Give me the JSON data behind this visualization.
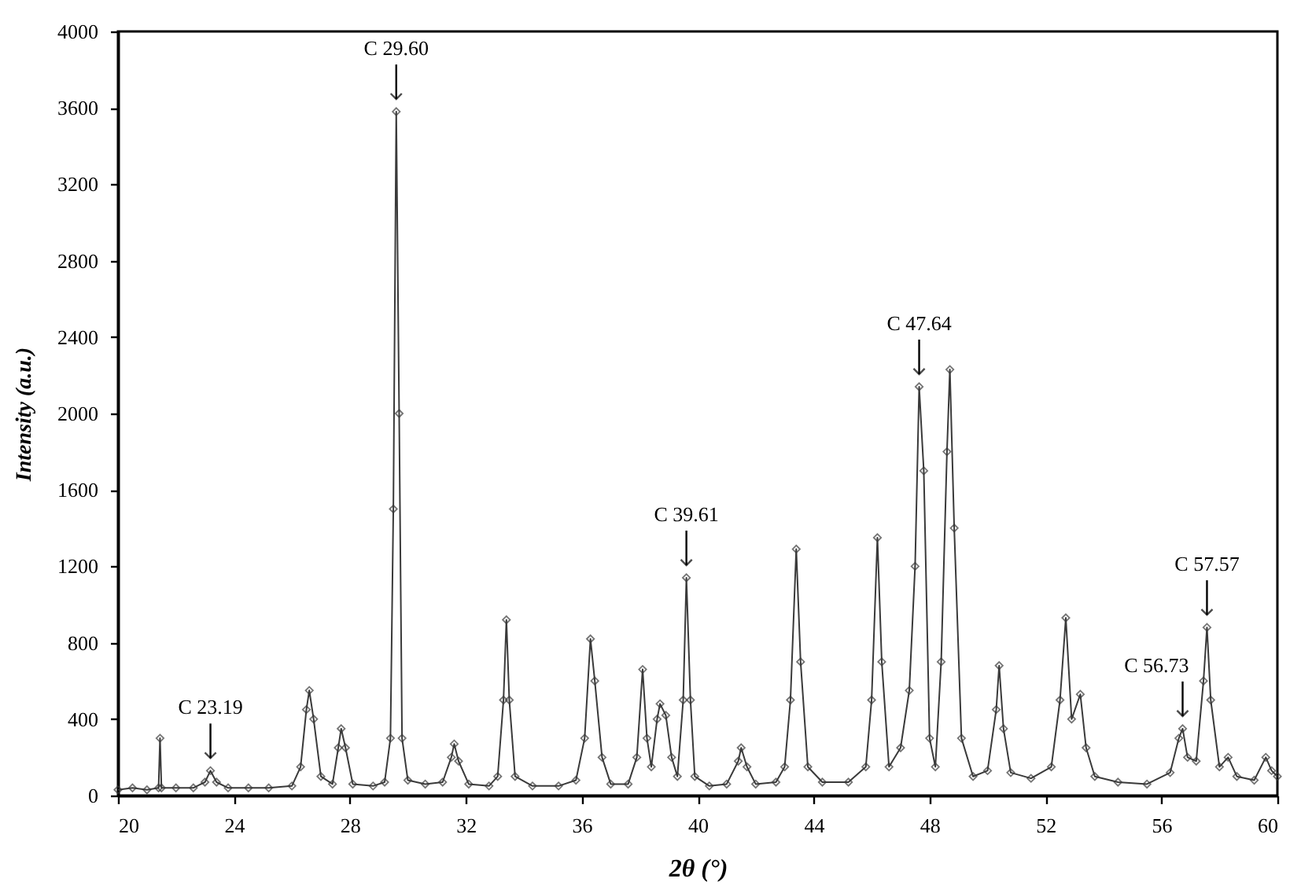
{
  "chart_data": {
    "type": "line",
    "xlabel": "2θ (°)",
    "ylabel": "Intensity (a.u.)",
    "xlim": [
      20,
      60
    ],
    "xticks": [
      20,
      24,
      28,
      32,
      36,
      40,
      44,
      48,
      52,
      56,
      60
    ],
    "ylim": [
      0,
      4000
    ],
    "yticks": [
      0,
      400,
      800,
      1200,
      1600,
      2000,
      2400,
      2800,
      3200,
      3600,
      4000
    ],
    "grid": false,
    "marker": "diamond",
    "line_style": "solid",
    "series": [
      {
        "color": "#3a3a3a",
        "x": [
          20.0,
          20.5,
          21.0,
          21.4,
          21.45,
          21.5,
          22.0,
          22.6,
          23.0,
          23.19,
          23.4,
          23.8,
          24.5,
          25.2,
          26.0,
          26.3,
          26.5,
          26.6,
          26.75,
          27.0,
          27.4,
          27.6,
          27.7,
          27.85,
          28.1,
          28.8,
          29.2,
          29.4,
          29.5,
          29.6,
          29.7,
          29.8,
          30.0,
          30.6,
          31.2,
          31.5,
          31.6,
          31.75,
          32.1,
          32.8,
          33.1,
          33.3,
          33.4,
          33.5,
          33.7,
          34.3,
          35.2,
          35.8,
          36.1,
          36.3,
          36.45,
          36.7,
          37.0,
          37.6,
          37.9,
          38.1,
          38.25,
          38.4,
          38.6,
          38.7,
          38.9,
          39.1,
          39.3,
          39.5,
          39.61,
          39.75,
          39.9,
          40.4,
          41.0,
          41.4,
          41.5,
          41.7,
          42.0,
          42.7,
          43.0,
          43.2,
          43.4,
          43.55,
          43.8,
          44.3,
          45.2,
          45.8,
          46.0,
          46.2,
          46.35,
          46.6,
          47.0,
          47.3,
          47.5,
          47.64,
          47.8,
          48.0,
          48.2,
          48.4,
          48.6,
          48.7,
          48.85,
          49.1,
          49.5,
          50.0,
          50.3,
          50.4,
          50.55,
          50.8,
          51.5,
          52.2,
          52.5,
          52.7,
          52.9,
          53.2,
          53.4,
          53.7,
          54.5,
          55.5,
          56.3,
          56.6,
          56.73,
          56.9,
          57.2,
          57.45,
          57.57,
          57.7,
          58.0,
          58.3,
          58.6,
          59.2,
          59.6,
          59.8,
          60.0
        ],
        "values": [
          30,
          40,
          30,
          40,
          300,
          40,
          40,
          40,
          70,
          130,
          70,
          40,
          40,
          40,
          50,
          150,
          450,
          550,
          400,
          100,
          60,
          250,
          350,
          250,
          60,
          50,
          70,
          300,
          1500,
          3580,
          2000,
          300,
          80,
          60,
          70,
          200,
          270,
          180,
          60,
          50,
          100,
          500,
          920,
          500,
          100,
          50,
          50,
          80,
          300,
          820,
          600,
          200,
          60,
          60,
          200,
          660,
          300,
          150,
          400,
          480,
          420,
          200,
          100,
          500,
          1140,
          500,
          100,
          50,
          60,
          180,
          250,
          150,
          60,
          70,
          150,
          500,
          1290,
          700,
          150,
          70,
          70,
          150,
          500,
          1350,
          700,
          150,
          250,
          550,
          1200,
          2140,
          1700,
          300,
          150,
          700,
          1800,
          2230,
          1400,
          300,
          100,
          130,
          450,
          680,
          350,
          120,
          90,
          150,
          500,
          930,
          400,
          530,
          250,
          100,
          70,
          60,
          120,
          300,
          350,
          200,
          180,
          600,
          880,
          500,
          150,
          200,
          100,
          80,
          200,
          130,
          100
        ]
      }
    ],
    "annotations": [
      {
        "text": "C 23.19",
        "x": 23.19,
        "y": 130
      },
      {
        "text": "C 29.60",
        "x": 29.6,
        "y": 3580
      },
      {
        "text": "C 39.61",
        "x": 39.61,
        "y": 1140
      },
      {
        "text": "C 47.64",
        "x": 47.64,
        "y": 2140
      },
      {
        "text": "C 56.73",
        "x": 56.73,
        "y": 350
      },
      {
        "text": "C 57.57",
        "x": 57.57,
        "y": 880
      }
    ]
  }
}
